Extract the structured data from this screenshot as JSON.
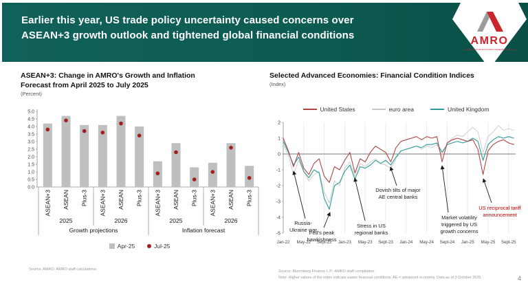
{
  "slide": {
    "page_number": "4"
  },
  "header": {
    "title": "Earlier this year, US trade policy uncertainty caused concerns over\nASEAN+3 growth outlook and tightened global financial conditions",
    "logo": {
      "wordmark": "AMRO",
      "tagline": "ASEAN+3 MACROECONOMIC RESEARCH OFFICE"
    },
    "colors": {
      "banner_green": "#0d5c52",
      "logo_red": "#c9252b",
      "logo_gray": "#9c9c9c"
    }
  },
  "left_chart": {
    "title": "ASEAN+3: Change in AMRO's Growth and Inflation\nForecast from April 2025 to July 2025",
    "unit": "(Percent)",
    "legend": [
      {
        "label": "Apr-25",
        "marker": "square",
        "color": "#bfbfbf"
      },
      {
        "label": "Jul-25",
        "marker": "dot",
        "color": "#a02020"
      }
    ],
    "source": "Source: AMRO; AMRO staff calculations."
  },
  "right_chart": {
    "title": "Selected Advanced Economies: Financial Condition Indices",
    "unit": "(Index)",
    "legend": [
      {
        "label": "United States",
        "color": "#b04543"
      },
      {
        "label": "euro area",
        "color": "#c9c9c9"
      },
      {
        "label": "United Kingdom",
        "color": "#2a9d96"
      }
    ],
    "annotations": [
      {
        "text": "Russia-\nUkraine war",
        "color": "#1a1a1a"
      },
      {
        "text": "Fed's peak\nhawkishness",
        "color": "#1a1a1a"
      },
      {
        "text": "Stress in US\nregional banks",
        "color": "#1a1a1a"
      },
      {
        "text": "Dovish tilts of major\nAE central banks",
        "color": "#1a1a1a"
      },
      {
        "text": "Market volatility\ntriggered by US\ngrowth concerns",
        "color": "#1a1a1a"
      },
      {
        "text": "US reciprocal tariff\nannouncement",
        "color": "#c00000"
      }
    ],
    "source": "Source: Bloomberg Finance L.P.; AMRO staff compilation.",
    "note": "Note: Higher values of the index indicate easier financial conditions. AE = advanced economy. Data as of 3 October 2025."
  },
  "chart_data": [
    {
      "type": "bar",
      "title": "ASEAN+3: Change in AMRO's Growth and Inflation Forecast from April 2025 to July 2025",
      "ylabel": "Percent",
      "ylim": [
        0,
        5
      ],
      "ytick_step": 0.5,
      "series_labels": {
        "bars": "Apr-25",
        "dots": "Jul-25"
      },
      "colors": {
        "bar": "#bfbfbf",
        "dot": "#a02020"
      },
      "sections": [
        {
          "label": "Growth projections",
          "years": [
            {
              "label": "2025",
              "items": [
                {
                  "category": "ASEAN+3",
                  "apr25": 4.2,
                  "jul25": 3.8
                },
                {
                  "category": "ASEAN",
                  "apr25": 4.7,
                  "jul25": 4.4
                },
                {
                  "category": "Plus-3",
                  "apr25": 4.1,
                  "jul25": 3.7
                }
              ]
            },
            {
              "label": "2026",
              "items": [
                {
                  "category": "ASEAN+3",
                  "apr25": 4.1,
                  "jul25": 3.6
                },
                {
                  "category": "ASEAN",
                  "apr25": 4.7,
                  "jul25": 4.2
                },
                {
                  "category": "Plus-3",
                  "apr25": 4.0,
                  "jul25": 3.4
                }
              ]
            }
          ]
        },
        {
          "label": "Inflation forecast",
          "years": [
            {
              "label": "2025",
              "items": [
                {
                  "category": "ASEAN+3",
                  "apr25": 1.7,
                  "jul25": 0.9
                },
                {
                  "category": "ASEAN",
                  "apr25": 2.9,
                  "jul25": 2.3
                },
                {
                  "category": "Plus-3",
                  "apr25": 1.3,
                  "jul25": 0.5
                }
              ]
            },
            {
              "label": "2026",
              "items": [
                {
                  "category": "ASEAN+3",
                  "apr25": 1.6,
                  "jul25": 1.0
                },
                {
                  "category": "ASEAN",
                  "apr25": 2.9,
                  "jul25": 2.6
                },
                {
                  "category": "Plus-3",
                  "apr25": 1.4,
                  "jul25": 0.6
                }
              ]
            }
          ]
        }
      ]
    },
    {
      "type": "line",
      "title": "Selected Advanced Economies: Financial Condition Indices",
      "ylabel": "Index",
      "ylim": [
        -5,
        2
      ],
      "grid": "vertical",
      "zero_line": true,
      "x_monthly_start": "Jan-22",
      "x_ticks": [
        "Jan-22",
        "May-22",
        "Sept-22",
        "Jan-23",
        "May-23",
        "Sept-23",
        "Jan-24",
        "May-24",
        "Sept-24",
        "Jan-25",
        "May-25",
        "Sept-25"
      ],
      "series": [
        {
          "name": "United States",
          "color": "#b04543",
          "values": [
            1.0,
            0.2,
            -0.8,
            0.1,
            -0.9,
            -1.3,
            -0.6,
            -0.3,
            -1.4,
            -1.8,
            -0.8,
            -1.0,
            -0.4,
            0.1,
            -1.2,
            -0.3,
            -0.5,
            0.1,
            0.5,
            0.3,
            0.1,
            -0.5,
            0.4,
            0.8,
            0.9,
            1.0,
            1.1,
            0.9,
            1.1,
            1.0,
            1.1,
            -0.5,
            0.7,
            0.9,
            1.0,
            0.9,
            0.8,
            0.9,
            0.3,
            -1.3,
            0.2,
            0.6,
            0.8,
            0.9,
            0.7,
            0.6
          ]
        },
        {
          "name": "euro area",
          "color": "#c9c9c9",
          "values": [
            0.6,
            -0.1,
            -1.3,
            -0.4,
            -1.1,
            -1.7,
            -1.3,
            -1.1,
            -2.4,
            -3.1,
            -1.7,
            -2.0,
            -0.9,
            -0.5,
            -1.4,
            -0.6,
            -0.8,
            -0.5,
            -0.3,
            -0.6,
            -0.7,
            -0.9,
            -0.3,
            0.2,
            0.3,
            0.4,
            0.5,
            0.3,
            0.5,
            0.4,
            0.6,
            -0.1,
            0.7,
            1.0,
            1.2,
            1.1,
            1.4,
            1.7,
            1.4,
            0.1,
            1.1,
            1.4,
            1.8,
            1.5,
            1.6,
            1.5
          ]
        },
        {
          "name": "United Kingdom",
          "color": "#2a9d96",
          "values": [
            0.8,
            0.1,
            -0.7,
            -0.2,
            -1.1,
            -1.5,
            -1.0,
            -1.2,
            -2.8,
            -3.5,
            -2.0,
            -1.8,
            -1.1,
            -0.7,
            -1.6,
            -0.8,
            -0.9,
            -0.7,
            -0.4,
            -0.6,
            -0.4,
            -0.7,
            -0.2,
            0.2,
            0.3,
            0.4,
            0.5,
            0.4,
            0.6,
            0.6,
            0.7,
            0.1,
            0.6,
            0.7,
            0.8,
            0.7,
            0.8,
            1.0,
            0.8,
            -0.4,
            0.6,
            0.9,
            1.1,
            1.0,
            1.1,
            1.0
          ]
        }
      ]
    }
  ]
}
